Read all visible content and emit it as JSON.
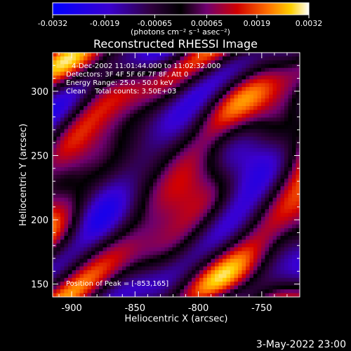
{
  "chart_data": {
    "type": "heatmap",
    "title": "Reconstructed RHESSI Image",
    "xlabel": "Heliocentric X (arcsec)",
    "ylabel": "Heliocentric Y (arcsec)",
    "xlim": [
      -915,
      -720
    ],
    "ylim": [
      140,
      330
    ],
    "x_ticks": [
      -900,
      -850,
      -800,
      -750
    ],
    "x_tick_labels": [
      "-900",
      "-850",
      "-800",
      "-750"
    ],
    "y_ticks": [
      150,
      200,
      250,
      300
    ],
    "y_tick_labels": [
      "150",
      "200",
      "250",
      "300"
    ],
    "colorbar": {
      "range": [
        -0.0032,
        0.0032
      ],
      "ticks": [
        -0.0032,
        -0.0019,
        -0.00065,
        0.00065,
        0.0019,
        0.0032
      ],
      "tick_labels": [
        "-0.0032",
        "-0.0019",
        "-0.00065",
        "0.00065",
        "0.0019",
        "0.0032"
      ],
      "unit_label": "(photons cm⁻² s⁻¹ asec⁻²)",
      "colormap": [
        "#0000ff",
        "#5000c0",
        "#000000",
        "#7a0080",
        "#d00000",
        "#ff6a00",
        "#ffc000",
        "#ffffff"
      ]
    },
    "annotations": {
      "time_range": "4-Dec-2002 11:01:44.000 to 11:02:32.000",
      "detectors": "Detectors: 3F 4F 5F 6F 7F 8F, Att 0",
      "energy_range": "Energy Range: 25.0 - 50.0 keV",
      "method": "Clean    Total counts: 3.50E+03",
      "peak": "Position of Peak = [-853,165]"
    },
    "peak_position": [
      -853,
      165
    ],
    "grid": false
  },
  "footer": {
    "date": "3-May-2022 23:00"
  }
}
